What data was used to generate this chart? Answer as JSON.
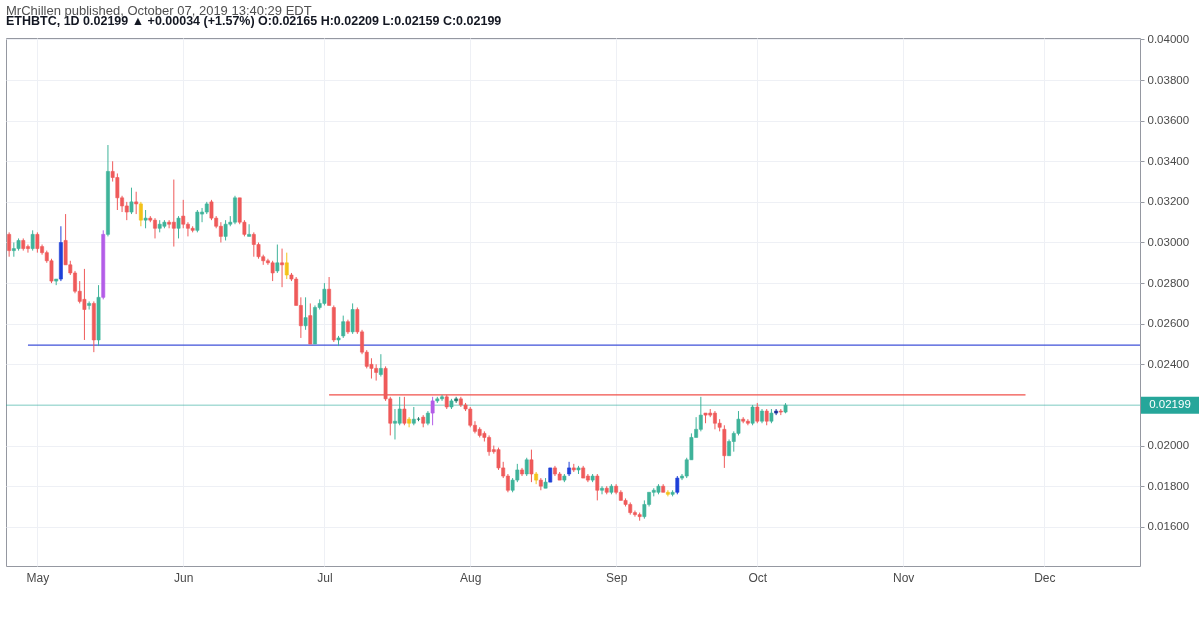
{
  "chart_data": {
    "type": "candlestick",
    "title": "ETHBTC, 1D 0.02199 ▲ +0.00034 (+1.57%) O:0.02165 H:0.02209 L:0.02159 C:0.02199",
    "annotations": [
      "MrChillen published, October 07, 2019 13:40:29 EDT"
    ],
    "x": [
      "2019-04-25",
      "2019-04-26",
      "2019-04-27",
      "2019-04-28",
      "2019-04-29",
      "2019-04-30",
      "2019-05-01",
      "2019-05-02",
      "2019-05-03",
      "2019-05-04",
      "2019-05-05",
      "2019-05-06",
      "2019-05-07",
      "2019-05-08",
      "2019-05-09",
      "2019-05-10",
      "2019-05-11",
      "2019-05-12",
      "2019-05-13",
      "2019-05-14",
      "2019-05-15",
      "2019-05-16",
      "2019-05-17",
      "2019-05-18",
      "2019-05-19",
      "2019-05-20",
      "2019-05-21",
      "2019-05-22",
      "2019-05-23",
      "2019-05-24",
      "2019-05-25",
      "2019-05-26",
      "2019-05-27",
      "2019-05-28",
      "2019-05-29",
      "2019-05-30",
      "2019-05-31",
      "2019-06-01",
      "2019-06-02",
      "2019-06-03",
      "2019-06-04",
      "2019-06-05",
      "2019-06-06",
      "2019-06-07",
      "2019-06-08",
      "2019-06-09",
      "2019-06-10",
      "2019-06-11",
      "2019-06-12",
      "2019-06-13",
      "2019-06-14",
      "2019-06-15",
      "2019-06-16",
      "2019-06-17",
      "2019-06-18",
      "2019-06-19",
      "2019-06-20",
      "2019-06-21",
      "2019-06-22",
      "2019-06-23",
      "2019-06-24",
      "2019-06-25",
      "2019-06-26",
      "2019-06-27",
      "2019-06-28",
      "2019-06-29",
      "2019-06-30",
      "2019-07-01",
      "2019-07-02",
      "2019-07-03",
      "2019-07-04",
      "2019-07-05",
      "2019-07-06",
      "2019-07-07",
      "2019-07-08",
      "2019-07-09",
      "2019-07-10",
      "2019-07-11",
      "2019-07-12",
      "2019-07-13",
      "2019-07-14",
      "2019-07-15",
      "2019-07-16",
      "2019-07-17",
      "2019-07-18",
      "2019-07-19",
      "2019-07-20",
      "2019-07-21",
      "2019-07-22",
      "2019-07-23",
      "2019-07-24",
      "2019-07-25",
      "2019-07-26",
      "2019-07-27",
      "2019-07-28",
      "2019-07-29",
      "2019-07-30",
      "2019-07-31",
      "2019-08-01",
      "2019-08-02",
      "2019-08-03",
      "2019-08-04",
      "2019-08-05",
      "2019-08-06",
      "2019-08-07",
      "2019-08-08",
      "2019-08-09",
      "2019-08-10",
      "2019-08-11",
      "2019-08-12",
      "2019-08-13",
      "2019-08-14",
      "2019-08-15",
      "2019-08-16",
      "2019-08-17",
      "2019-08-18",
      "2019-08-19",
      "2019-08-20",
      "2019-08-21",
      "2019-08-22",
      "2019-08-23",
      "2019-08-24",
      "2019-08-25",
      "2019-08-26",
      "2019-08-27",
      "2019-08-28",
      "2019-08-29",
      "2019-08-30",
      "2019-08-31",
      "2019-09-01",
      "2019-09-02",
      "2019-09-03",
      "2019-09-04",
      "2019-09-05",
      "2019-09-06",
      "2019-09-07",
      "2019-09-08",
      "2019-09-09",
      "2019-09-10",
      "2019-09-11",
      "2019-09-12",
      "2019-09-13",
      "2019-09-14",
      "2019-09-15",
      "2019-09-16",
      "2019-09-17",
      "2019-09-18",
      "2019-09-19",
      "2019-09-20",
      "2019-09-21",
      "2019-09-22",
      "2019-09-23",
      "2019-09-24",
      "2019-09-25",
      "2019-09-26",
      "2019-09-27",
      "2019-09-28",
      "2019-09-29",
      "2019-09-30",
      "2019-10-01",
      "2019-10-02",
      "2019-10-03",
      "2019-10-04",
      "2019-10-05",
      "2019-10-06",
      "2019-10-07"
    ],
    "ohlc": [
      [
        0.0304,
        0.0305,
        0.0293,
        0.0296
      ],
      [
        0.0296,
        0.03,
        0.0293,
        0.0297
      ],
      [
        0.0297,
        0.0302,
        0.0296,
        0.0301
      ],
      [
        0.0301,
        0.0302,
        0.0296,
        0.0297
      ],
      [
        0.0298,
        0.0299,
        0.0295,
        0.0297
      ],
      [
        0.0297,
        0.0306,
        0.0296,
        0.0304
      ],
      [
        0.0304,
        0.0305,
        0.0295,
        0.0297
      ],
      [
        0.0298,
        0.0299,
        0.0294,
        0.0295
      ],
      [
        0.0295,
        0.0296,
        0.029,
        0.0291
      ],
      [
        0.0291,
        0.0292,
        0.028,
        0.0281
      ],
      [
        0.0281,
        0.0282,
        0.0279,
        0.0282
      ],
      [
        0.0282,
        0.0308,
        0.0281,
        0.03
      ],
      [
        0.0301,
        0.0314,
        0.0289,
        0.0289
      ],
      [
        0.0289,
        0.0291,
        0.0284,
        0.0285
      ],
      [
        0.0285,
        0.0286,
        0.0275,
        0.0276
      ],
      [
        0.0276,
        0.0281,
        0.027,
        0.0271
      ],
      [
        0.0272,
        0.0287,
        0.0252,
        0.0267
      ],
      [
        0.0269,
        0.0271,
        0.0267,
        0.027
      ],
      [
        0.027,
        0.0271,
        0.0246,
        0.0252
      ],
      [
        0.0252,
        0.0279,
        0.0249,
        0.0273
      ],
      [
        0.0273,
        0.0306,
        0.0272,
        0.0304
      ],
      [
        0.0304,
        0.0348,
        0.0303,
        0.0335
      ],
      [
        0.0335,
        0.034,
        0.033,
        0.0332
      ],
      [
        0.0332,
        0.0334,
        0.0316,
        0.0322
      ],
      [
        0.0322,
        0.0323,
        0.0315,
        0.0318
      ],
      [
        0.0318,
        0.032,
        0.0311,
        0.0315
      ],
      [
        0.0315,
        0.0327,
        0.0314,
        0.032
      ],
      [
        0.032,
        0.0325,
        0.0314,
        0.0319
      ],
      [
        0.0319,
        0.032,
        0.0308,
        0.0311
      ],
      [
        0.0311,
        0.0316,
        0.0307,
        0.0312
      ],
      [
        0.0312,
        0.0313,
        0.031,
        0.0311
      ],
      [
        0.0311,
        0.0312,
        0.0302,
        0.0307
      ],
      [
        0.0307,
        0.0311,
        0.0305,
        0.0309
      ],
      [
        0.0308,
        0.0311,
        0.0307,
        0.031
      ],
      [
        0.031,
        0.0311,
        0.0307,
        0.0309
      ],
      [
        0.031,
        0.0331,
        0.0298,
        0.0307
      ],
      [
        0.0307,
        0.0313,
        0.0302,
        0.0312
      ],
      [
        0.0313,
        0.0321,
        0.0307,
        0.0309
      ],
      [
        0.0309,
        0.031,
        0.0303,
        0.0307
      ],
      [
        0.0307,
        0.0308,
        0.0305,
        0.0306
      ],
      [
        0.0306,
        0.0316,
        0.0305,
        0.0315
      ],
      [
        0.0314,
        0.0317,
        0.031,
        0.0315
      ],
      [
        0.0315,
        0.032,
        0.0314,
        0.0319
      ],
      [
        0.032,
        0.0321,
        0.0311,
        0.0312
      ],
      [
        0.0312,
        0.0313,
        0.0307,
        0.0308
      ],
      [
        0.0308,
        0.031,
        0.03,
        0.0303
      ],
      [
        0.0303,
        0.0311,
        0.0301,
        0.0309
      ],
      [
        0.0309,
        0.0313,
        0.0308,
        0.031
      ],
      [
        0.031,
        0.0323,
        0.0309,
        0.0322
      ],
      [
        0.0322,
        0.0322,
        0.0309,
        0.031
      ],
      [
        0.031,
        0.0311,
        0.0303,
        0.0304
      ],
      [
        0.0303,
        0.0309,
        0.0303,
        0.0304
      ],
      [
        0.0304,
        0.0305,
        0.0293,
        0.0299
      ],
      [
        0.0299,
        0.03,
        0.0292,
        0.0293
      ],
      [
        0.0293,
        0.0294,
        0.0289,
        0.0291
      ],
      [
        0.0291,
        0.0292,
        0.0289,
        0.029
      ],
      [
        0.029,
        0.0291,
        0.0281,
        0.0285
      ],
      [
        0.0286,
        0.0299,
        0.0285,
        0.029
      ],
      [
        0.029,
        0.0297,
        0.0278,
        0.0289
      ],
      [
        0.029,
        0.0295,
        0.0282,
        0.0284
      ],
      [
        0.0284,
        0.0285,
        0.0281,
        0.0282
      ],
      [
        0.0282,
        0.0283,
        0.0269,
        0.0269
      ],
      [
        0.0269,
        0.0273,
        0.0253,
        0.0259
      ],
      [
        0.0259,
        0.0273,
        0.0257,
        0.0263
      ],
      [
        0.0264,
        0.027,
        0.025,
        0.025
      ],
      [
        0.025,
        0.0269,
        0.025,
        0.0268
      ],
      [
        0.0268,
        0.0272,
        0.0267,
        0.027
      ],
      [
        0.027,
        0.028,
        0.0269,
        0.0277
      ],
      [
        0.0277,
        0.0283,
        0.0269,
        0.0269
      ],
      [
        0.0268,
        0.0269,
        0.0251,
        0.0252
      ],
      [
        0.0252,
        0.0254,
        0.0249,
        0.0253
      ],
      [
        0.0254,
        0.0264,
        0.0253,
        0.0261
      ],
      [
        0.0261,
        0.0262,
        0.0255,
        0.0256
      ],
      [
        0.0256,
        0.027,
        0.0255,
        0.0267
      ],
      [
        0.0267,
        0.0268,
        0.0255,
        0.0256
      ],
      [
        0.0256,
        0.0257,
        0.0245,
        0.0246
      ],
      [
        0.0246,
        0.0247,
        0.0238,
        0.0239
      ],
      [
        0.024,
        0.0243,
        0.0233,
        0.0238
      ],
      [
        0.0238,
        0.024,
        0.0232,
        0.0236
      ],
      [
        0.0235,
        0.0245,
        0.0234,
        0.0238
      ],
      [
        0.0238,
        0.0239,
        0.0222,
        0.0223
      ],
      [
        0.0223,
        0.0224,
        0.0205,
        0.0211
      ],
      [
        0.0211,
        0.0218,
        0.0203,
        0.0212
      ],
      [
        0.0211,
        0.0224,
        0.021,
        0.0218
      ],
      [
        0.0218,
        0.0224,
        0.021,
        0.0211
      ],
      [
        0.0213,
        0.0214,
        0.0209,
        0.0211
      ],
      [
        0.0211,
        0.0219,
        0.021,
        0.0213
      ],
      [
        0.0213,
        0.0214,
        0.0212,
        0.0213
      ],
      [
        0.0214,
        0.0215,
        0.0209,
        0.0211
      ],
      [
        0.0211,
        0.0217,
        0.021,
        0.0216
      ],
      [
        0.0216,
        0.0224,
        0.021,
        0.0222
      ],
      [
        0.0222,
        0.0224,
        0.0221,
        0.0223
      ],
      [
        0.0223,
        0.0225,
        0.0222,
        0.0224
      ],
      [
        0.0224,
        0.0225,
        0.0218,
        0.0219
      ],
      [
        0.0219,
        0.0223,
        0.0218,
        0.0222
      ],
      [
        0.0222,
        0.0224,
        0.0221,
        0.0223
      ],
      [
        0.0223,
        0.0224,
        0.0219,
        0.022
      ],
      [
        0.022,
        0.0221,
        0.0217,
        0.0218
      ],
      [
        0.0218,
        0.0219,
        0.0209,
        0.021
      ],
      [
        0.021,
        0.0212,
        0.0206,
        0.0207
      ],
      [
        0.0208,
        0.0209,
        0.0204,
        0.0205
      ],
      [
        0.0206,
        0.0207,
        0.0202,
        0.0204
      ],
      [
        0.0204,
        0.0205,
        0.0195,
        0.0197
      ],
      [
        0.0198,
        0.02,
        0.0196,
        0.0197
      ],
      [
        0.0198,
        0.0199,
        0.0188,
        0.0189
      ],
      [
        0.0189,
        0.0192,
        0.0184,
        0.0185
      ],
      [
        0.0185,
        0.0186,
        0.0177,
        0.0178
      ],
      [
        0.0178,
        0.0184,
        0.0177,
        0.0183
      ],
      [
        0.0183,
        0.0191,
        0.0182,
        0.0188
      ],
      [
        0.0188,
        0.0189,
        0.0185,
        0.0186
      ],
      [
        0.0186,
        0.0194,
        0.0185,
        0.0193
      ],
      [
        0.0193,
        0.0198,
        0.0182,
        0.0186
      ],
      [
        0.0186,
        0.0187,
        0.0181,
        0.0183
      ],
      [
        0.0183,
        0.0184,
        0.0178,
        0.018
      ],
      [
        0.0179,
        0.0184,
        0.0179,
        0.0182
      ],
      [
        0.0182,
        0.0189,
        0.0182,
        0.0189
      ],
      [
        0.0189,
        0.019,
        0.0185,
        0.0186
      ],
      [
        0.0186,
        0.0187,
        0.0183,
        0.0183
      ],
      [
        0.0183,
        0.0186,
        0.0182,
        0.0185
      ],
      [
        0.0186,
        0.0192,
        0.0185,
        0.0189
      ],
      [
        0.0189,
        0.0191,
        0.0187,
        0.0188
      ],
      [
        0.0188,
        0.019,
        0.0186,
        0.0189
      ],
      [
        0.0189,
        0.019,
        0.0184,
        0.0184
      ],
      [
        0.0185,
        0.0186,
        0.0182,
        0.0183
      ],
      [
        0.0183,
        0.0186,
        0.0182,
        0.0185
      ],
      [
        0.0185,
        0.0186,
        0.0173,
        0.0178
      ],
      [
        0.0178,
        0.018,
        0.0176,
        0.0179
      ],
      [
        0.0179,
        0.018,
        0.0176,
        0.0177
      ],
      [
        0.0177,
        0.0181,
        0.0176,
        0.018
      ],
      [
        0.018,
        0.0181,
        0.0176,
        0.0177
      ],
      [
        0.0177,
        0.0178,
        0.0173,
        0.0173
      ],
      [
        0.0173,
        0.0174,
        0.017,
        0.0171
      ],
      [
        0.0171,
        0.0172,
        0.0166,
        0.0167
      ],
      [
        0.0167,
        0.0168,
        0.0165,
        0.0166
      ],
      [
        0.0166,
        0.0167,
        0.0163,
        0.0165
      ],
      [
        0.0165,
        0.0173,
        0.0164,
        0.0171
      ],
      [
        0.0171,
        0.0177,
        0.017,
        0.0177
      ],
      [
        0.0177,
        0.0179,
        0.0175,
        0.0178
      ],
      [
        0.0177,
        0.0181,
        0.0176,
        0.018
      ],
      [
        0.018,
        0.0181,
        0.0177,
        0.0177
      ],
      [
        0.0177,
        0.0178,
        0.0175,
        0.0176
      ],
      [
        0.0176,
        0.0178,
        0.0175,
        0.0177
      ],
      [
        0.0177,
        0.0185,
        0.0176,
        0.0184
      ],
      [
        0.0184,
        0.0186,
        0.0183,
        0.0185
      ],
      [
        0.0185,
        0.0194,
        0.0184,
        0.0193
      ],
      [
        0.0193,
        0.0206,
        0.0193,
        0.0204
      ],
      [
        0.0204,
        0.0214,
        0.0204,
        0.0208
      ],
      [
        0.0208,
        0.0224,
        0.0207,
        0.0215
      ],
      [
        0.0216,
        0.0216,
        0.0211,
        0.0215
      ],
      [
        0.0216,
        0.0218,
        0.0214,
        0.0215
      ],
      [
        0.0216,
        0.0217,
        0.0208,
        0.0211
      ],
      [
        0.0211,
        0.0213,
        0.0207,
        0.0209
      ],
      [
        0.0208,
        0.021,
        0.0189,
        0.0195
      ],
      [
        0.0195,
        0.0203,
        0.0195,
        0.0202
      ],
      [
        0.0202,
        0.0207,
        0.0197,
        0.0206
      ],
      [
        0.0206,
        0.0217,
        0.0205,
        0.0213
      ],
      [
        0.0213,
        0.0214,
        0.0211,
        0.0212
      ],
      [
        0.0212,
        0.0213,
        0.021,
        0.0211
      ],
      [
        0.0211,
        0.022,
        0.021,
        0.0219
      ],
      [
        0.0219,
        0.0221,
        0.0211,
        0.0212
      ],
      [
        0.0212,
        0.0218,
        0.0211,
        0.0217
      ],
      [
        0.0217,
        0.0218,
        0.021,
        0.0212
      ],
      [
        0.0212,
        0.0218,
        0.0211,
        0.0216
      ],
      [
        0.0216,
        0.0218,
        0.0215,
        0.0217
      ],
      [
        0.0217,
        0.0218,
        0.0215,
        0.02165
      ],
      [
        0.02165,
        0.02209,
        0.02159,
        0.02199
      ]
    ],
    "colors": [
      "#ef5a5a",
      "#3fb39a",
      "#3fb39a",
      "#ef5a5a",
      "#ef5a5a",
      "#3fb39a",
      "#ef5a5a",
      "#ef5a5a",
      "#ef5a5a",
      "#ef5a5a",
      "#3fb39a",
      "#1e40d8",
      "#ef5a5a",
      "#ef5a5a",
      "#ef5a5a",
      "#ef5a5a",
      "#ef5a5a",
      "#3fb39a",
      "#ef5a5a",
      "#3fb39a",
      "#b35de8",
      "#3fb39a",
      "#ef5a5a",
      "#ef5a5a",
      "#ef5a5a",
      "#ef5a5a",
      "#3fb39a",
      "#ef5a5a",
      "#f3c21a",
      "#3fb39a",
      "#ef5a5a",
      "#ef5a5a",
      "#3fb39a",
      "#3fb39a",
      "#ef5a5a",
      "#ef5a5a",
      "#3fb39a",
      "#ef5a5a",
      "#ef5a5a",
      "#ef5a5a",
      "#3fb39a",
      "#3fb39a",
      "#3fb39a",
      "#ef5a5a",
      "#ef5a5a",
      "#ef5a5a",
      "#3fb39a",
      "#3fb39a",
      "#3fb39a",
      "#ef5a5a",
      "#ef5a5a",
      "#3fb39a",
      "#ef5a5a",
      "#ef5a5a",
      "#ef5a5a",
      "#ef5a5a",
      "#ef5a5a",
      "#3fb39a",
      "#ef5a5a",
      "#f3c21a",
      "#ef5a5a",
      "#ef5a5a",
      "#ef5a5a",
      "#3fb39a",
      "#ef5a5a",
      "#3fb39a",
      "#3fb39a",
      "#3fb39a",
      "#ef5a5a",
      "#ef5a5a",
      "#3fb39a",
      "#3fb39a",
      "#ef5a5a",
      "#3fb39a",
      "#ef5a5a",
      "#ef5a5a",
      "#ef5a5a",
      "#ef5a5a",
      "#ef5a5a",
      "#3fb39a",
      "#ef5a5a",
      "#ef5a5a",
      "#3fb39a",
      "#3fb39a",
      "#ef5a5a",
      "#f3c21a",
      "#3fb39a",
      "#1f7a6a",
      "#ef5a5a",
      "#3fb39a",
      "#b35de8",
      "#3fb39a",
      "#3fb39a",
      "#ef5a5a",
      "#3fb39a",
      "#1f7a6a",
      "#ef5a5a",
      "#ef5a5a",
      "#ef5a5a",
      "#ef5a5a",
      "#ef5a5a",
      "#ef5a5a",
      "#ef5a5a",
      "#ef5a5a",
      "#ef5a5a",
      "#ef5a5a",
      "#ef5a5a",
      "#3fb39a",
      "#3fb39a",
      "#ef5a5a",
      "#3fb39a",
      "#ef5a5a",
      "#f3c21a",
      "#ef5a5a",
      "#3fb39a",
      "#1e40d8",
      "#ef5a5a",
      "#ef5a5a",
      "#3fb39a",
      "#1e40d8",
      "#ef5a5a",
      "#3fb39a",
      "#ef5a5a",
      "#ef5a5a",
      "#3fb39a",
      "#ef5a5a",
      "#3fb39a",
      "#ef5a5a",
      "#3fb39a",
      "#ef5a5a",
      "#ef5a5a",
      "#ef5a5a",
      "#ef5a5a",
      "#ef5a5a",
      "#ef5a5a",
      "#3fb39a",
      "#3fb39a",
      "#3fb39a",
      "#3fb39a",
      "#ef5a5a",
      "#f3c21a",
      "#3fb39a",
      "#1e40d8",
      "#3fb39a",
      "#3fb39a",
      "#3fb39a",
      "#3fb39a",
      "#3fb39a",
      "#ef5a5a",
      "#ef5a5a",
      "#ef5a5a",
      "#ef5a5a",
      "#ef5a5a",
      "#3fb39a",
      "#3fb39a",
      "#3fb39a",
      "#ef5a5a",
      "#ef5a5a",
      "#3fb39a",
      "#ef5a5a",
      "#3fb39a",
      "#ef5a5a",
      "#3fb39a",
      "#1a2f9a",
      "#ef5a5a",
      "#3fb39a"
    ],
    "series": [
      {
        "type": "line",
        "x": [
          "2019-04-29",
          "2019-12-21T08:00"
        ],
        "values": [
          0.02495,
          0.02495
        ],
        "color": "#3f51d9"
      },
      {
        "type": "line",
        "x": [
          "2019-07-02",
          "2019-11-27"
        ],
        "values": [
          0.0225,
          0.0225
        ],
        "color": "#f0504a"
      }
    ],
    "ref_lines": [
      {
        "axis": "y",
        "value": 0.02199,
        "label": "0.02199",
        "color": "#26a69a"
      }
    ],
    "xlim": [
      "2019-04-24T08:00",
      "2019-12-21T08:00"
    ],
    "xticks": [
      {
        "value": "2019-05-01",
        "label": "May"
      },
      {
        "value": "2019-06-01",
        "label": "Jun"
      },
      {
        "value": "2019-07-01",
        "label": "Jul"
      },
      {
        "value": "2019-08-01",
        "label": "Aug"
      },
      {
        "value": "2019-09-01",
        "label": "Sep"
      },
      {
        "value": "2019-10-01",
        "label": "Oct"
      },
      {
        "value": "2019-11-01",
        "label": "Nov"
      },
      {
        "value": "2019-12-01",
        "label": "Dec"
      }
    ],
    "ylim": [
      0.01407,
      0.04007
    ],
    "yticks": [
      {
        "value": 0.016,
        "label": "0.01600"
      },
      {
        "value": 0.018,
        "label": "0.01800"
      },
      {
        "value": 0.02,
        "label": "0.02000"
      },
      {
        "value": 0.024,
        "label": "0.02400"
      },
      {
        "value": 0.026,
        "label": "0.02600"
      },
      {
        "value": 0.028,
        "label": "0.02800"
      },
      {
        "value": 0.03,
        "label": "0.03000"
      },
      {
        "value": 0.032,
        "label": "0.03200"
      },
      {
        "value": 0.034,
        "label": "0.03400"
      },
      {
        "value": 0.036,
        "label": "0.03600"
      },
      {
        "value": 0.038,
        "label": "0.03800"
      },
      {
        "value": 0.04,
        "label": "0.04000"
      }
    ],
    "grid": true
  }
}
